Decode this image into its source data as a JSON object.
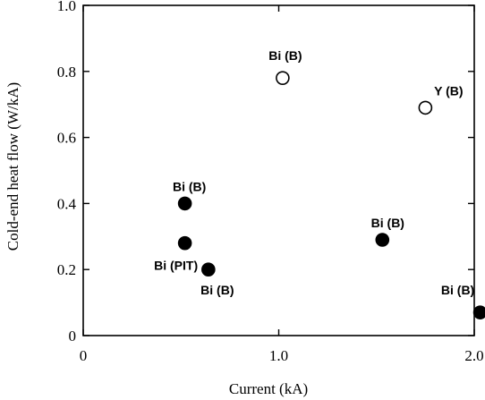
{
  "chart_data": {
    "type": "scatter",
    "xlabel": "Current (kA)",
    "ylabel": "Cold-end heat flow (W/kA)",
    "xlim": [
      0,
      2.0
    ],
    "ylim": [
      0,
      1.0
    ],
    "x_ticks": [
      0,
      1.0,
      2.0
    ],
    "x_tick_labels": [
      "0",
      "1.0",
      "2.0"
    ],
    "y_ticks": [
      0,
      0.2,
      0.4,
      0.6,
      0.8,
      1.0
    ],
    "y_tick_labels": [
      "0",
      "0.2",
      "0.4",
      "0.6",
      "0.8",
      "1.0"
    ],
    "grid": false,
    "points": [
      {
        "x": 0.52,
        "y": 0.4,
        "label": "Bi (B)",
        "marker": "filled"
      },
      {
        "x": 0.52,
        "y": 0.28,
        "label": "Bi (PIT)",
        "marker": "filled"
      },
      {
        "x": 0.64,
        "y": 0.2,
        "label": "Bi (B)",
        "marker": "filled"
      },
      {
        "x": 1.02,
        "y": 0.78,
        "label": "Bi (B)",
        "marker": "open"
      },
      {
        "x": 1.53,
        "y": 0.29,
        "label": "Bi (B)",
        "marker": "filled"
      },
      {
        "x": 1.75,
        "y": 0.69,
        "label": "Y (B)",
        "marker": "open"
      },
      {
        "x": 2.03,
        "y": 0.07,
        "label": "Bi (B)",
        "marker": "filled"
      }
    ]
  }
}
